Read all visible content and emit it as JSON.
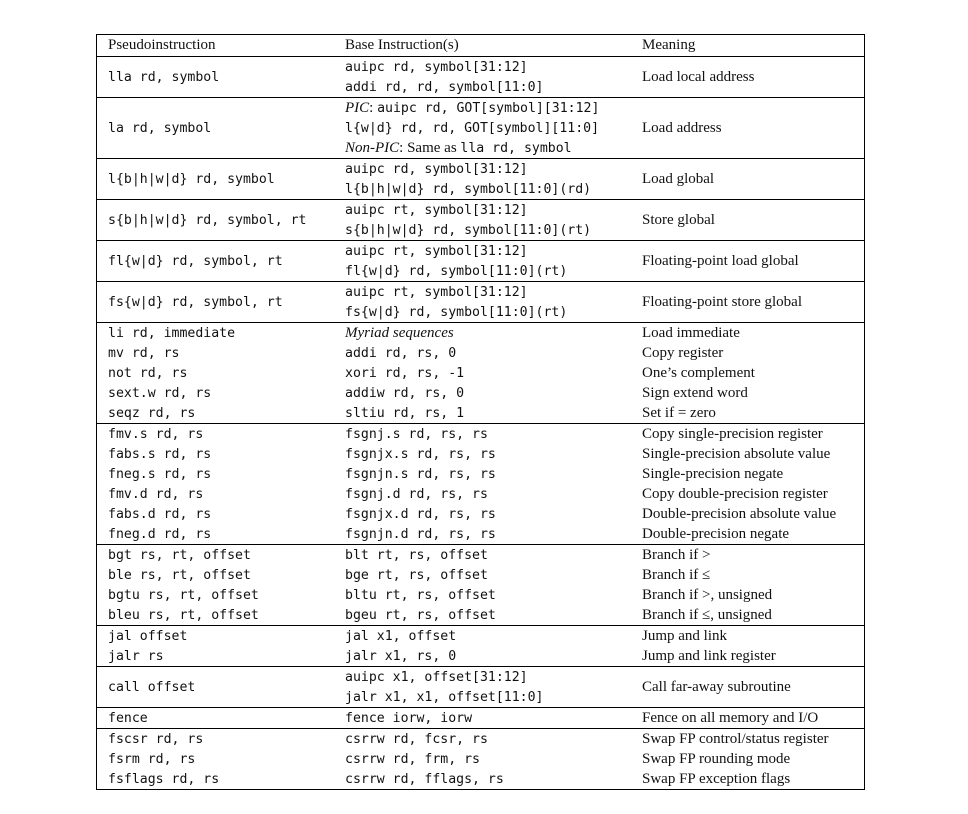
{
  "headers": {
    "pseudo": "Pseudoinstruction",
    "base": "Base Instruction(s)",
    "meaning": "Meaning"
  },
  "groups": [
    [
      {
        "pseudo": "lla rd, symbol",
        "base": [
          {
            "t": "auipc rd, symbol[31:12]"
          },
          {
            "t": "addi rd, rd, symbol[11:0]"
          }
        ],
        "meaning": "Load local address"
      }
    ],
    [
      {
        "pseudo": "la rd, symbol",
        "base": [
          {
            "pre": "PIC",
            "t": ": auipc rd, GOT[symbol][31:12]"
          },
          {
            "t": "l{w|d} rd, rd, GOT[symbol][11:0]"
          },
          {
            "pre": "Non-PIC",
            "post": ": Same as ",
            "t": "lla rd, symbol"
          }
        ],
        "meaning": "Load address"
      }
    ],
    [
      {
        "pseudo": "l{b|h|w|d} rd, symbol",
        "base": [
          {
            "t": "auipc rd, symbol[31:12]"
          },
          {
            "t": "l{b|h|w|d} rd, symbol[11:0](rd)"
          }
        ],
        "meaning": "Load global"
      }
    ],
    [
      {
        "pseudo": "s{b|h|w|d} rd, symbol, rt",
        "base": [
          {
            "t": "auipc rt, symbol[31:12]"
          },
          {
            "t": "s{b|h|w|d} rd, symbol[11:0](rt)"
          }
        ],
        "meaning": "Store global"
      }
    ],
    [
      {
        "pseudo": "fl{w|d} rd, symbol, rt",
        "base": [
          {
            "t": "auipc rt, symbol[31:12]"
          },
          {
            "t": "fl{w|d} rd, symbol[11:0](rt)"
          }
        ],
        "meaning": "Floating-point load global"
      }
    ],
    [
      {
        "pseudo": "fs{w|d} rd, symbol, rt",
        "base": [
          {
            "t": "auipc rt, symbol[31:12]"
          },
          {
            "t": "fs{w|d} rd, symbol[11:0](rt)"
          }
        ],
        "meaning": "Floating-point store global"
      }
    ],
    [
      {
        "pseudo": "li rd, immediate",
        "base": [
          {
            "it": "Myriad sequences"
          }
        ],
        "meaning": "Load immediate"
      },
      {
        "pseudo": "mv rd, rs",
        "base": [
          {
            "t": "addi rd, rs, 0"
          }
        ],
        "meaning": "Copy register"
      },
      {
        "pseudo": "not rd, rs",
        "base": [
          {
            "t": "xori rd, rs, -1"
          }
        ],
        "meaning": "One’s complement"
      },
      {
        "pseudo": "sext.w rd, rs",
        "base": [
          {
            "t": "addiw rd, rs, 0"
          }
        ],
        "meaning": "Sign extend word"
      },
      {
        "pseudo": "seqz rd, rs",
        "base": [
          {
            "t": "sltiu rd, rs, 1"
          }
        ],
        "meaning": "Set if = zero"
      }
    ],
    [
      {
        "pseudo": "fmv.s rd, rs",
        "base": [
          {
            "t": "fsgnj.s rd, rs, rs"
          }
        ],
        "meaning": "Copy single-precision register"
      },
      {
        "pseudo": "fabs.s rd, rs",
        "base": [
          {
            "t": "fsgnjx.s rd, rs, rs"
          }
        ],
        "meaning": "Single-precision absolute value"
      },
      {
        "pseudo": "fneg.s rd, rs",
        "base": [
          {
            "t": "fsgnjn.s rd, rs, rs"
          }
        ],
        "meaning": "Single-precision negate"
      },
      {
        "pseudo": "fmv.d rd, rs",
        "base": [
          {
            "t": "fsgnj.d rd, rs, rs"
          }
        ],
        "meaning": "Copy double-precision register"
      },
      {
        "pseudo": "fabs.d rd, rs",
        "base": [
          {
            "t": "fsgnjx.d rd, rs, rs"
          }
        ],
        "meaning": "Double-precision absolute value"
      },
      {
        "pseudo": "fneg.d rd, rs",
        "base": [
          {
            "t": "fsgnjn.d rd, rs, rs"
          }
        ],
        "meaning": "Double-precision negate"
      }
    ],
    [
      {
        "pseudo": "bgt rs, rt, offset",
        "base": [
          {
            "t": "blt rt, rs, offset"
          }
        ],
        "meaning": "Branch if >"
      },
      {
        "pseudo": "ble rs, rt, offset",
        "base": [
          {
            "t": "bge rt, rs, offset"
          }
        ],
        "meaning": "Branch if ≤"
      },
      {
        "pseudo": "bgtu rs, rt, offset",
        "base": [
          {
            "t": "bltu rt, rs, offset"
          }
        ],
        "meaning": "Branch if >, unsigned"
      },
      {
        "pseudo": "bleu rs, rt, offset",
        "base": [
          {
            "t": "bgeu rt, rs, offset"
          }
        ],
        "meaning": "Branch if ≤, unsigned"
      }
    ],
    [
      {
        "pseudo": "jal offset",
        "base": [
          {
            "t": "jal x1, offset"
          }
        ],
        "meaning": "Jump and link"
      },
      {
        "pseudo": "jalr rs",
        "base": [
          {
            "t": "jalr x1, rs, 0"
          }
        ],
        "meaning": "Jump and link register"
      }
    ],
    [
      {
        "pseudo": "call offset",
        "base": [
          {
            "t": "auipc x1, offset[31:12]"
          },
          {
            "t": "jalr x1, x1, offset[11:0]"
          }
        ],
        "meaning": "Call far-away subroutine"
      }
    ],
    [
      {
        "pseudo": "fence",
        "base": [
          {
            "t": "fence iorw, iorw"
          }
        ],
        "meaning": "Fence on all memory and I/O"
      }
    ],
    [
      {
        "pseudo": "fscsr rd, rs",
        "base": [
          {
            "t": "csrrw rd, fcsr, rs"
          }
        ],
        "meaning": "Swap FP control/status register"
      },
      {
        "pseudo": "fsrm rd, rs",
        "base": [
          {
            "t": "csrrw rd, frm, rs"
          }
        ],
        "meaning": "Swap FP rounding mode"
      },
      {
        "pseudo": "fsflags rd, rs",
        "base": [
          {
            "t": "csrrw rd, fflags, rs"
          }
        ],
        "meaning": "Swap FP exception flags"
      }
    ]
  ]
}
